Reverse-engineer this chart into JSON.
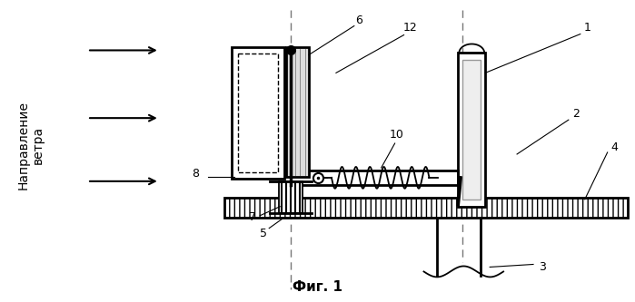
{
  "title": "Фиг. 1",
  "wind_label": "Направление\nветра",
  "bg_color": "#ffffff",
  "line_color": "#000000",
  "fig_width": 6.99,
  "fig_height": 3.33,
  "dpi": 100
}
